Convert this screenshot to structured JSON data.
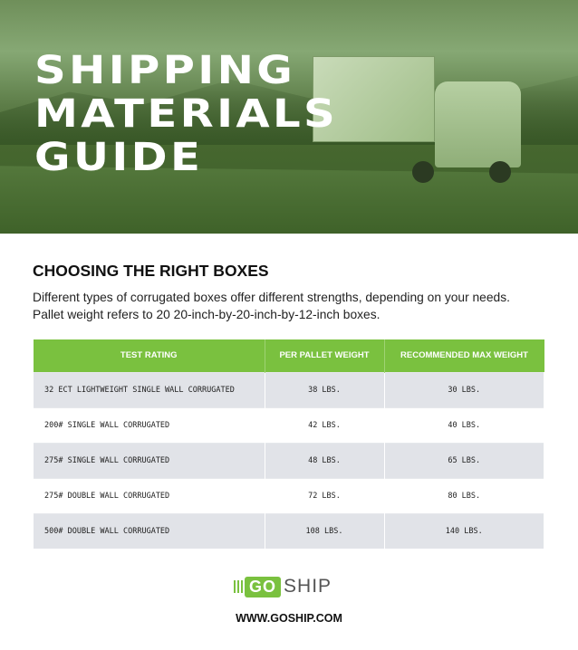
{
  "hero": {
    "title_lines": [
      "SHIPPING",
      "MATERIALS",
      "GUIDE"
    ]
  },
  "section": {
    "heading": "CHOOSING THE RIGHT BOXES",
    "intro_lines": [
      "Different types of corrugated boxes offer different strengths, depending on your needs.",
      "Pallet weight refers to 20 20-inch-by-20-inch-by-12-inch boxes."
    ]
  },
  "table": {
    "headers": [
      "TEST RATING",
      "PER PALLET WEIGHT",
      "RECOMMENDED MAX WEIGHT"
    ],
    "rows": [
      [
        "32 ECT LIGHTWEIGHT SINGLE WALL CORRUGATED",
        "38 LBS.",
        "30 LBS."
      ],
      [
        "200# SINGLE WALL CORRUGATED",
        "42 LBS.",
        "40 LBS."
      ],
      [
        "275# SINGLE WALL CORRUGATED",
        "48 LBS.",
        "65 LBS."
      ],
      [
        "275# DOUBLE WALL CORRUGATED",
        "72 LBS.",
        "80 LBS."
      ],
      [
        "500# DOUBLE WALL CORRUGATED",
        "108 LBS.",
        "140 LBS."
      ]
    ]
  },
  "footer": {
    "logo_go": "GO",
    "logo_ship": "SHIP",
    "url": "WWW.GOSHIP.COM"
  },
  "colors": {
    "accent": "#7ac13f",
    "row_alt": "#e1e3e8"
  }
}
